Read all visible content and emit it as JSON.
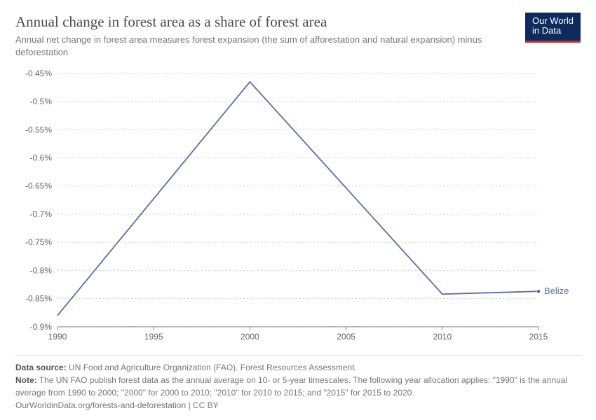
{
  "header": {
    "title": "Annual change in forest area as a share of forest area",
    "subtitle": "Annual net change in forest area measures forest expansion (the sum of afforestation and natural expansion) minus deforestation",
    "logo_line1": "Our World",
    "logo_line2": "in Data"
  },
  "chart": {
    "type": "line",
    "background_color": "#ffffff",
    "grid_color": "#cccccc",
    "axis_color": "#888888",
    "text_color": "#666666",
    "tick_fontsize": 12,
    "series_line_width": 1.8,
    "x": {
      "min": 1990,
      "max": 2015,
      "ticks": [
        1990,
        1995,
        2000,
        2005,
        2010,
        2015
      ]
    },
    "y": {
      "min": -0.9,
      "max": -0.45,
      "ticks": [
        -0.45,
        -0.5,
        -0.55,
        -0.6,
        -0.65,
        -0.7,
        -0.75,
        -0.8,
        -0.85,
        -0.9
      ],
      "tick_labels": [
        "-0.45%",
        "-0.5%",
        "-0.55%",
        "-0.6%",
        "-0.65%",
        "-0.7%",
        "-0.75%",
        "-0.8%",
        "-0.85%",
        "-0.9%"
      ]
    },
    "series": [
      {
        "name": "Belize",
        "color": "#5b6fa0",
        "marker_radius": 2.6,
        "points": [
          {
            "x": 1990,
            "y": -0.88
          },
          {
            "x": 2000,
            "y": -0.465
          },
          {
            "x": 2010,
            "y": -0.842
          },
          {
            "x": 2015,
            "y": -0.837
          }
        ]
      }
    ]
  },
  "footer": {
    "source_label": "Data source:",
    "source_text": "UN Food and Agriculture Organization (FAO). Forest Resources Assessment.",
    "note_label": "Note:",
    "note_text": "The UN FAO publish forest data as the annual average on 10- or 5-year timescales. The following year allocation applies: \"1990\" is the annual average from 1990 to 2000; \"2000\" for 2000 to 2010; \"2010\" for 2010 to 2015; and \"2015\" for 2015 to 2020.",
    "attribution": "OurWorldinData.org/forests-and-deforestation | CC BY"
  }
}
